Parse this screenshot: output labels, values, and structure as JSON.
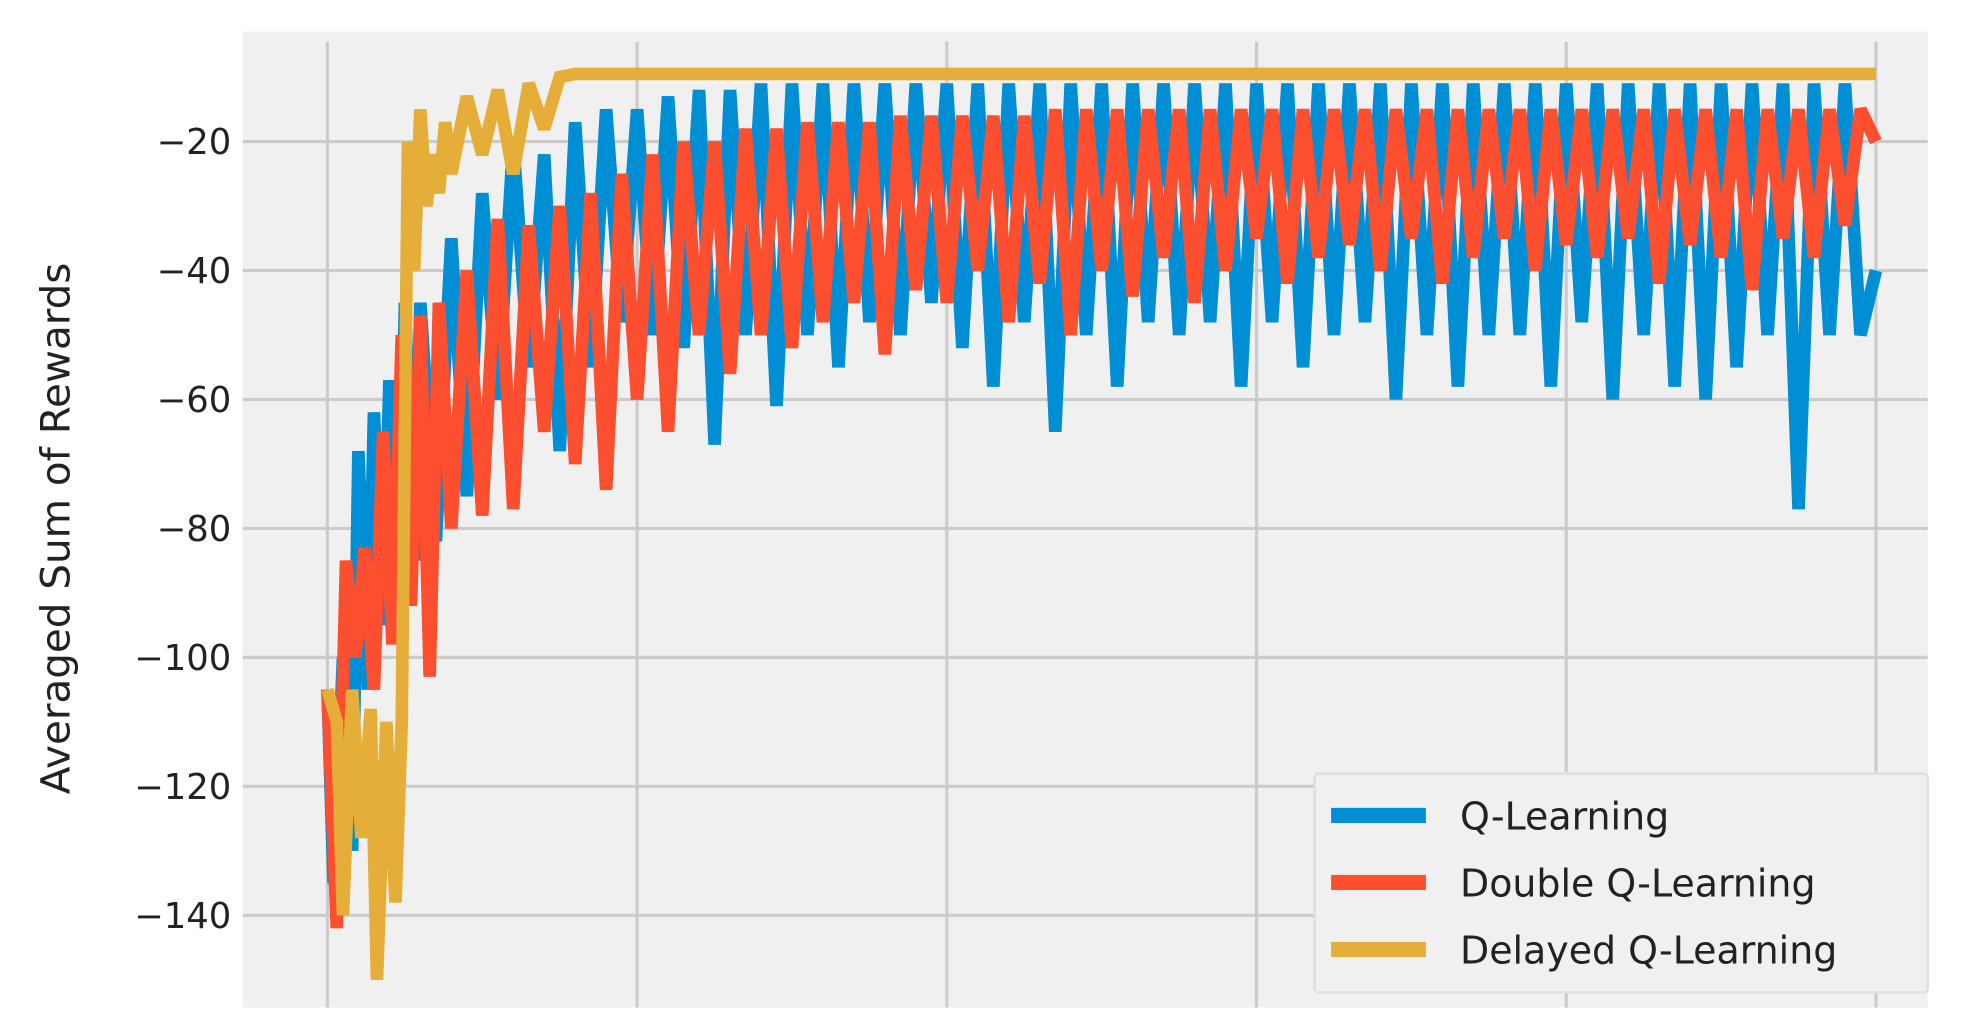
{
  "chart_data": {
    "type": "line",
    "title": "",
    "xlabel": "",
    "ylabel": "Averaged Sum of Rewards",
    "ylim": [
      -152,
      -5
    ],
    "xlim": [
      -14,
      530
    ],
    "yticks": [
      -20,
      -40,
      -60,
      -80,
      -100,
      -120,
      -140
    ],
    "ytick_labels": [
      "−20",
      "−40",
      "−60",
      "−80",
      "−100",
      "−120",
      "−140"
    ],
    "xticks": [
      0,
      100,
      200,
      300,
      400,
      500
    ],
    "xtick_labels": [],
    "grid": true,
    "background": "#f0f0f0",
    "grid_color": "#cbcbcb",
    "legend_position": "bottom-right",
    "series": [
      {
        "name": "Q-Learning",
        "color": "#008fd5",
        "x": [
          0,
          2,
          5,
          8,
          10,
          13,
          15,
          18,
          20,
          23,
          25,
          28,
          30,
          35,
          40,
          45,
          50,
          55,
          60,
          65,
          70,
          75,
          80,
          85,
          90,
          95,
          100,
          105,
          110,
          115,
          120,
          125,
          130,
          135,
          140,
          145,
          150,
          155,
          160,
          165,
          170,
          175,
          180,
          185,
          190,
          195,
          200,
          205,
          210,
          215,
          220,
          225,
          230,
          235,
          240,
          245,
          250,
          255,
          260,
          265,
          270,
          275,
          280,
          285,
          290,
          295,
          300,
          305,
          310,
          315,
          320,
          325,
          330,
          335,
          340,
          345,
          350,
          355,
          360,
          365,
          370,
          375,
          380,
          385,
          390,
          395,
          400,
          405,
          410,
          415,
          420,
          425,
          430,
          435,
          440,
          445,
          450,
          455,
          460,
          465,
          470,
          475,
          480,
          485,
          490,
          495,
          500
        ],
        "y": [
          -105,
          -135,
          -100,
          -130,
          -68,
          -105,
          -62,
          -95,
          -57,
          -90,
          -45,
          -85,
          -45,
          -82,
          -35,
          -75,
          -28,
          -60,
          -20,
          -55,
          -22,
          -68,
          -17,
          -55,
          -15,
          -48,
          -15,
          -50,
          -13,
          -52,
          -12,
          -67,
          -12,
          -50,
          -11,
          -61,
          -11,
          -50,
          -11,
          -55,
          -11,
          -48,
          -11,
          -50,
          -11,
          -45,
          -11,
          -52,
          -11,
          -58,
          -11,
          -48,
          -11,
          -65,
          -11,
          -50,
          -11,
          -58,
          -11,
          -48,
          -11,
          -50,
          -11,
          -48,
          -11,
          -58,
          -11,
          -48,
          -11,
          -55,
          -11,
          -50,
          -11,
          -48,
          -11,
          -60,
          -11,
          -50,
          -11,
          -58,
          -11,
          -50,
          -11,
          -50,
          -11,
          -58,
          -11,
          -48,
          -11,
          -60,
          -11,
          -50,
          -11,
          -58,
          -11,
          -60,
          -11,
          -55,
          -11,
          -50,
          -11,
          -77,
          -11,
          -50,
          -11,
          -50,
          -40
        ]
      },
      {
        "name": "Double Q-Learning",
        "color": "#fc4f30",
        "x": [
          0,
          3,
          6,
          9,
          12,
          15,
          18,
          21,
          24,
          27,
          30,
          33,
          36,
          40,
          45,
          50,
          55,
          60,
          65,
          70,
          75,
          80,
          85,
          90,
          95,
          100,
          105,
          110,
          115,
          120,
          125,
          130,
          135,
          140,
          145,
          150,
          155,
          160,
          165,
          170,
          175,
          180,
          185,
          190,
          195,
          200,
          205,
          210,
          215,
          220,
          225,
          230,
          235,
          240,
          245,
          250,
          255,
          260,
          265,
          270,
          275,
          280,
          285,
          290,
          295,
          300,
          305,
          310,
          315,
          320,
          325,
          330,
          335,
          340,
          345,
          350,
          355,
          360,
          365,
          370,
          375,
          380,
          385,
          390,
          395,
          400,
          405,
          410,
          415,
          420,
          425,
          430,
          435,
          440,
          445,
          450,
          455,
          460,
          465,
          470,
          475,
          480,
          485,
          490,
          495,
          500
        ],
        "y": [
          -105,
          -142,
          -85,
          -100,
          -83,
          -105,
          -65,
          -98,
          -50,
          -92,
          -47,
          -103,
          -45,
          -80,
          -40,
          -78,
          -32,
          -77,
          -33,
          -65,
          -30,
          -70,
          -28,
          -74,
          -25,
          -60,
          -22,
          -65,
          -20,
          -50,
          -20,
          -56,
          -18,
          -50,
          -18,
          -52,
          -17,
          -48,
          -17,
          -45,
          -17,
          -53,
          -16,
          -43,
          -16,
          -45,
          -16,
          -40,
          -16,
          -48,
          -16,
          -42,
          -15,
          -50,
          -15,
          -40,
          -15,
          -44,
          -15,
          -38,
          -15,
          -45,
          -15,
          -40,
          -15,
          -35,
          -15,
          -42,
          -15,
          -38,
          -15,
          -36,
          -15,
          -40,
          -15,
          -35,
          -15,
          -42,
          -15,
          -38,
          -15,
          -35,
          -15,
          -40,
          -15,
          -36,
          -15,
          -38,
          -15,
          -35,
          -15,
          -42,
          -15,
          -36,
          -15,
          -38,
          -15,
          -43,
          -15,
          -35,
          -15,
          -38,
          -15,
          -33,
          -15,
          -20
        ]
      },
      {
        "name": "Delayed Q-Learning",
        "color": "#e5ae38",
        "x": [
          0,
          3,
          5,
          8,
          11,
          14,
          16,
          19,
          22,
          24,
          26,
          28,
          30,
          32,
          34,
          36,
          38,
          40,
          45,
          50,
          55,
          60,
          65,
          70,
          75,
          80,
          100,
          200,
          300,
          400,
          500
        ],
        "y": [
          -105,
          -110,
          -140,
          -105,
          -128,
          -108,
          -150,
          -110,
          -138,
          -110,
          -20,
          -40,
          -15,
          -30,
          -22,
          -28,
          -17,
          -25,
          -13,
          -22,
          -12,
          -25,
          -11,
          -18,
          -10,
          -9.5,
          -9.5,
          -9.5,
          -9.5,
          -9.5,
          -9.5
        ]
      }
    ]
  }
}
